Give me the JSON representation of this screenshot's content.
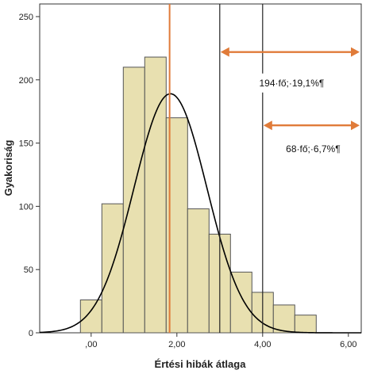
{
  "chart_data": {
    "type": "bar",
    "title": "",
    "xlabel": "Értési hibák átlaga",
    "ylabel": "Gyakoriság",
    "xlim": [
      -1.2,
      6.3
    ],
    "ylim": [
      0,
      260
    ],
    "bin_width": 0.5,
    "x_ticks": [
      0,
      2,
      4,
      6
    ],
    "x_tick_labels": [
      ",00",
      "2,00",
      "4,00",
      "6,00"
    ],
    "y_ticks": [
      0,
      50,
      100,
      150,
      200,
      250
    ],
    "y_tick_labels": [
      "0",
      "50",
      "100",
      "150",
      "200",
      "250"
    ],
    "bins": [
      {
        "start": -0.25,
        "end": 0.25,
        "count": 26
      },
      {
        "start": 0.25,
        "end": 0.75,
        "count": 102
      },
      {
        "start": 0.75,
        "end": 1.25,
        "count": 210
      },
      {
        "start": 1.25,
        "end": 1.75,
        "count": 218
      },
      {
        "start": 1.75,
        "end": 2.25,
        "count": 170
      },
      {
        "start": 2.25,
        "end": 2.75,
        "count": 98
      },
      {
        "start": 2.75,
        "end": 3.25,
        "count": 78
      },
      {
        "start": 3.25,
        "end": 3.75,
        "count": 48
      },
      {
        "start": 3.75,
        "end": 4.25,
        "count": 32
      },
      {
        "start": 4.25,
        "end": 4.75,
        "count": 22
      },
      {
        "start": 4.75,
        "end": 5.25,
        "count": 14
      }
    ],
    "normal_curve": {
      "mean": 1.85,
      "sd": 0.85,
      "peak": 189
    },
    "mean_line": {
      "x": 1.83,
      "color": "#e07b39"
    },
    "threshold_lines": [
      3.0,
      4.0
    ],
    "annotations": [
      {
        "from_x": 3.0,
        "text": "194·fő;·19,1%¶",
        "arrow_y": 222,
        "text_y": 195
      },
      {
        "from_x": 4.0,
        "text": "68·fő;·6,7%¶",
        "arrow_y": 164,
        "text_y": 143
      }
    ],
    "grid": false,
    "legend": "none",
    "colors": {
      "bar_fill": "#e8e0b0",
      "bar_stroke": "#555555",
      "curve": "#000000",
      "arrow": "#e07b39"
    }
  }
}
